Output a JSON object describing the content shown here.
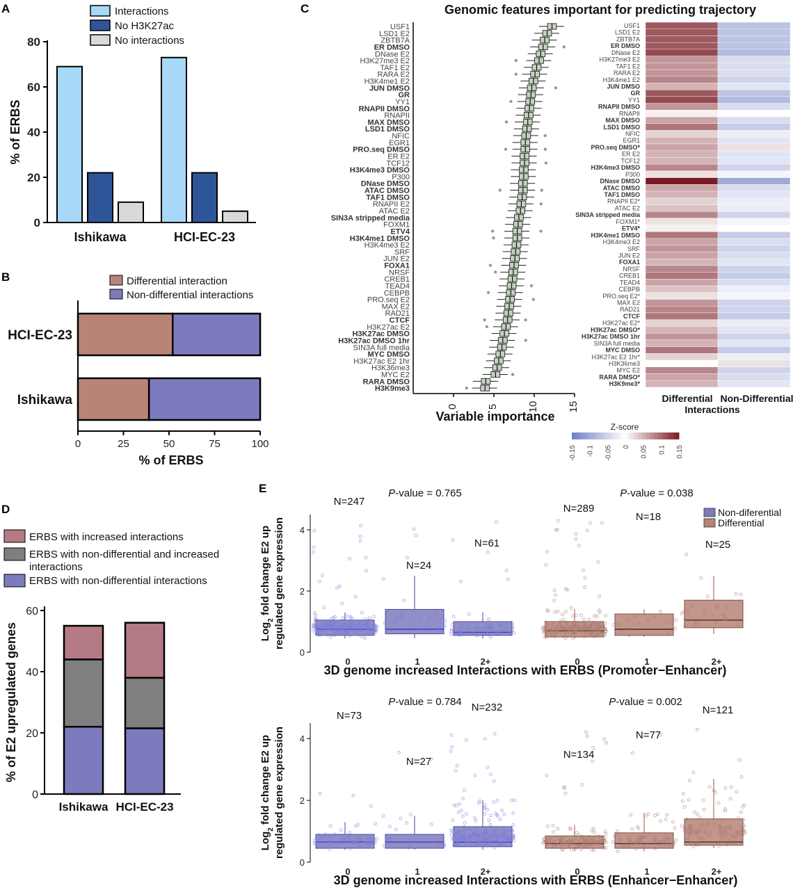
{
  "chart_data": [
    {
      "panel": "A",
      "type": "bar",
      "categories": [
        "Ishikawa",
        "HCI-EC-23"
      ],
      "series": [
        {
          "name": "Interactions",
          "values": [
            69,
            73
          ],
          "color": "#a7d8f7"
        },
        {
          "name": "No H3K27ac",
          "values": [
            22,
            22
          ],
          "color": "#2e5597"
        },
        {
          "name": "No interactions",
          "values": [
            9,
            5
          ],
          "color": "#d9d9d9"
        }
      ],
      "ylabel": "% of ERBS",
      "ylim": [
        0,
        80
      ],
      "yticks": [
        0,
        20,
        40,
        60,
        80
      ]
    },
    {
      "panel": "B",
      "type": "bar",
      "orientation": "horizontal",
      "stacked": true,
      "categories": [
        "HCI-EC-23",
        "Ishikawa"
      ],
      "series": [
        {
          "name": "Differential interaction",
          "values": [
            52,
            39
          ],
          "color": "#b88478"
        },
        {
          "name": "Non-differential interactions",
          "values": [
            48,
            61
          ],
          "color": "#7c7bbd"
        }
      ],
      "xlabel": "% of ERBS",
      "xlim": [
        0,
        100
      ],
      "xticks": [
        0,
        25,
        50,
        75,
        100
      ]
    },
    {
      "panel": "C",
      "type": "box",
      "title": "Genomic features important for predicting trajectory",
      "xlabel": "Variable importance",
      "xlim": [
        -5,
        15
      ],
      "xticks": [
        0,
        5,
        10,
        15
      ],
      "features": [
        "USF1",
        "LSD1 E2",
        "ZBTB7A",
        "ER DMSO",
        "DNase E2",
        "H3K27me3 E2",
        "TAF1 E2",
        "RARA E2",
        "H3K4me1 E2",
        "JUN DMSO",
        "GR",
        "YY1",
        "RNAPII DMSO",
        "RNAPII",
        "MAX DMSO",
        "LSD1 DMSO",
        "NFIC",
        "EGR1",
        "PRO.seq DMSO",
        "ER E2",
        "TCF12",
        "H3K4me3 DMSO",
        "P300",
        "DNase DMSO",
        "ATAC DMSO",
        "TAF1 DMSO",
        "RNAPII E2",
        "ATAC E2",
        "SIN3A stripped media",
        "FOXM1",
        "ETV4",
        "H3K4me1 DMSO",
        "H3K4me3 E2",
        "SRF",
        "JUN E2",
        "FOXA1",
        "NRSF",
        "CREB1",
        "TEAD4",
        "CEBPB",
        "PRO.seq E2",
        "MAX E2",
        "RAD21",
        "CTCF",
        "H3K27ac E2",
        "H3K27ac DMSO",
        "H3K27ac DMSO 1hr",
        "SIN3A full media",
        "MYC DMSO",
        "H3K27ac E2 1hr",
        "H3K36me3",
        "MYC E2",
        "RARA DMSO",
        "H3K9me3"
      ],
      "bold": [
        "ER DMSO",
        "JUN DMSO",
        "GR",
        "RNAPII DMSO",
        "MAX DMSO",
        "LSD1 DMSO",
        "PRO.seq DMSO",
        "H3K4me3 DMSO",
        "DNase DMSO",
        "ATAC DMSO",
        "TAF1 DMSO",
        "SIN3A stripped media",
        "ETV4",
        "H3K4me1 DMSO",
        "FOXA1",
        "CTCF",
        "H3K27ac DMSO",
        "H3K27ac DMSO 1hr",
        "MYC DMSO",
        "RARA DMSO",
        "H3K9me3"
      ],
      "medians": [
        12.2,
        11.6,
        11.3,
        11.1,
        10.8,
        10.6,
        10.3,
        10.1,
        9.9,
        9.7,
        9.6,
        9.5,
        9.4,
        9.3,
        9.2,
        9.1,
        9.0,
        8.9,
        8.9,
        8.8,
        8.8,
        8.7,
        8.7,
        8.6,
        8.6,
        8.5,
        8.4,
        8.3,
        8.1,
        8.0,
        7.9,
        7.9,
        7.8,
        7.7,
        7.6,
        7.5,
        7.4,
        7.3,
        7.2,
        7.1,
        7.0,
        6.9,
        6.8,
        6.7,
        6.5,
        6.3,
        6.1,
        6.0,
        5.8,
        5.6,
        5.4,
        5.2,
        4.0,
        3.9
      ],
      "color": "#c4d3bf"
    },
    {
      "panel": "C-heatmap",
      "type": "heatmap",
      "columns": [
        "Differential\nInteractions",
        "Non-Differential"
      ],
      "rows": [
        "USF1",
        "LSD1 E2",
        "ZBTB7A",
        "ER DMSO",
        "DNase E2",
        "H3K27me3 E2",
        "TAF1 E2",
        "RARA E2",
        "H3K4me1 E2",
        "JUN DMSO",
        "GR",
        "YY1",
        "RNAPII DMSO",
        "RNAPII",
        "MAX DMSO",
        "LSD1 DMSO",
        "NFIC",
        "EGR1",
        "PRO.seq DMSO*",
        "ER E2",
        "TCF12",
        "H3K4me3 DMSO",
        "P300",
        "DNase DMSO",
        "ATAC DMSO",
        "TAF1 DMSO",
        "RNAPII E2*",
        "ATAC E2",
        "SIN3A stripped media",
        "FOXM1*",
        "ETV4*",
        "H3K4me1 DMSO",
        "H3K4me3 E2",
        "SRF",
        "JUN E2",
        "FOXA1",
        "NRSF",
        "CREB1",
        "TEAD4",
        "CEBPB",
        "PRO.seq E2*",
        "MAX E2",
        "RAD21",
        "CTCF",
        "H3K27ac E2*",
        "H3K27ac DMSO*",
        "H3K27ac DMSO 1hr",
        "SIN3A full media",
        "MYC DMSO",
        "H3K27ac E2 1hr*",
        "H3K36me3",
        "MYC E2",
        "RARA DMSO*",
        "H3K9me3*"
      ],
      "bold": [
        "ER DMSO",
        "JUN DMSO",
        "GR",
        "RNAPII DMSO",
        "MAX DMSO",
        "LSD1 DMSO",
        "PRO.seq DMSO*",
        "H3K4me3 DMSO",
        "DNase DMSO",
        "ATAC DMSO",
        "TAF1 DMSO",
        "SIN3A stripped media",
        "ETV4*",
        "H3K4me1 DMSO",
        "FOXA1",
        "CTCF",
        "H3K27ac DMSO*",
        "H3K27ac DMSO 1hr",
        "MYC DMSO",
        "RARA DMSO*",
        "H3K9me3*"
      ],
      "diff": [
        0.11,
        0.11,
        0.11,
        0.11,
        0.12,
        0.07,
        0.07,
        0.07,
        0.08,
        0.05,
        0.11,
        0.12,
        0.07,
        0.01,
        0.06,
        0.09,
        0.03,
        0.05,
        0.06,
        0.05,
        0.05,
        0.08,
        0.02,
        0.15,
        0.06,
        0.05,
        0.03,
        0.04,
        0.08,
        0.02,
        0.01,
        0.09,
        0.06,
        0.07,
        0.06,
        0.05,
        0.08,
        0.09,
        0.06,
        0.04,
        0.02,
        0.07,
        0.08,
        0.09,
        0.03,
        0.05,
        0.07,
        0.05,
        0.09,
        0.03,
        0.0,
        0.08,
        0.06,
        0.05
      ],
      "nondiff": [
        -0.07,
        -0.07,
        -0.07,
        -0.07,
        -0.08,
        -0.04,
        -0.04,
        -0.04,
        -0.05,
        -0.03,
        -0.07,
        -0.08,
        -0.04,
        0.0,
        -0.04,
        -0.06,
        -0.02,
        -0.03,
        0.02,
        -0.03,
        -0.03,
        -0.05,
        -0.01,
        -0.1,
        -0.04,
        -0.03,
        -0.02,
        -0.02,
        -0.05,
        -0.01,
        0.0,
        -0.06,
        -0.04,
        -0.05,
        -0.04,
        -0.03,
        -0.05,
        -0.06,
        -0.04,
        -0.02,
        -0.01,
        -0.05,
        -0.05,
        -0.06,
        -0.02,
        -0.03,
        -0.05,
        -0.03,
        -0.06,
        -0.02,
        0.02,
        -0.05,
        -0.04,
        -0.03
      ],
      "colorbar": {
        "title": "Z-score",
        "min": -0.15,
        "max": 0.15,
        "ticks": [
          "-0.15",
          "-0.1",
          "-0.05",
          "0",
          "0.05",
          "0.1",
          "0.15"
        ]
      }
    },
    {
      "panel": "D",
      "type": "bar",
      "stacked": true,
      "categories": [
        "Ishikawa",
        "HCI-EC-23"
      ],
      "series": [
        {
          "name": "ERBS with non-differential interactions",
          "values": [
            22,
            21.5
          ],
          "color": "#7c7bbd"
        },
        {
          "name": "ERBS with non-differential and increased interactions",
          "values": [
            22,
            16.5
          ],
          "color": "#7f7f7f"
        },
        {
          "name": "ERBS with increased interactions",
          "values": [
            11,
            18
          ],
          "color": "#b47b85"
        }
      ],
      "legend_order": [
        "ERBS with increased interactions",
        "ERBS with non-differential and increased interactions",
        "ERBS with non-differential interactions"
      ],
      "ylabel": "% of E2 upregulated genes",
      "ylim": [
        0,
        60
      ],
      "yticks": [
        0,
        20,
        40,
        60
      ]
    },
    {
      "panel": "E-top",
      "type": "box",
      "xlabel": "3D genome increased Interactions with ERBS (Promoter−Enhancer)",
      "ylabel_line1": "Log",
      "ylabel_sub": "2",
      "ylabel_line1_rest": " fold change E2 up",
      "ylabel_line2": "regulated gene expression",
      "yticks": [
        0,
        2,
        4
      ],
      "ylim": [
        0,
        4.5
      ],
      "groups": [
        {
          "series": "Non-diferential",
          "pvalue_label": "P",
          "pvalue": "-value = 0.765",
          "categories": [
            "0",
            "1",
            "2+"
          ],
          "n": [
            "N=247",
            "N=24",
            "N=61"
          ],
          "boxes": [
            [
              0.45,
              0.55,
              0.75,
              1.05,
              1.3
            ],
            [
              0.45,
              0.6,
              0.75,
              1.4,
              2.5
            ],
            [
              0.45,
              0.55,
              0.65,
              1.0,
              1.3
            ]
          ]
        },
        {
          "series": "Differential",
          "pvalue_label": "P",
          "pvalue": "-value = 0.038",
          "categories": [
            "0",
            "1",
            "2+"
          ],
          "n": [
            "N=289",
            "N=18",
            "N=25"
          ],
          "boxes": [
            [
              0.45,
              0.5,
              0.7,
              1.0,
              1.4
            ],
            [
              0.5,
              0.55,
              0.75,
              1.25,
              1.4
            ],
            [
              0.6,
              0.8,
              1.05,
              1.7,
              2.5
            ]
          ]
        }
      ],
      "legend": [
        "Non-diferential",
        "Differential"
      ]
    },
    {
      "panel": "E-bottom",
      "type": "box",
      "xlabel": "3D genome increased Interactions with ERBS (Enhancer−Enhancer)",
      "ylabel_line1": "Log",
      "ylabel_sub": "2",
      "ylabel_line1_rest": " fold change E2 up",
      "ylabel_line2": "regulated gene expression",
      "yticks": [
        0,
        2,
        4
      ],
      "ylim": [
        0,
        4.5
      ],
      "groups": [
        {
          "series": "Non-diferential",
          "pvalue_label": "P",
          "pvalue": "-value = 0.784",
          "categories": [
            "0",
            "1",
            "2+"
          ],
          "n": [
            "N=73",
            "N=27",
            "N=232"
          ],
          "boxes": [
            [
              0.4,
              0.45,
              0.65,
              0.9,
              1.3
            ],
            [
              0.4,
              0.45,
              0.65,
              0.9,
              1.5
            ],
            [
              0.4,
              0.5,
              0.65,
              1.15,
              2.0
            ]
          ]
        },
        {
          "series": "Differential",
          "pvalue_label": "P",
          "pvalue": "-value = 0.002",
          "categories": [
            "0",
            "1",
            "2+"
          ],
          "n": [
            "N=134",
            "N=77",
            "N=121"
          ],
          "boxes": [
            [
              0.35,
              0.45,
              0.6,
              0.85,
              1.2
            ],
            [
              0.35,
              0.45,
              0.6,
              0.95,
              1.6
            ],
            [
              0.45,
              0.55,
              0.65,
              1.4,
              2.7
            ]
          ]
        }
      ]
    }
  ],
  "colors": {
    "nondiff_box": "#7c7bbd",
    "nondiff_point": "#7b7bd8",
    "diff_box": "#b88478",
    "diff_point": "#a97a70",
    "green_box": "#c4d3bf",
    "heat_neg": "#6f7fc4",
    "heat_pos": "#7a1c24"
  }
}
